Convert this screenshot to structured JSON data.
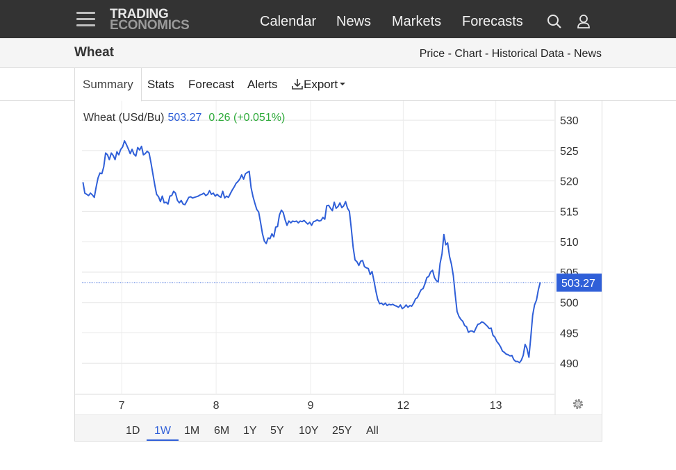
{
  "header": {
    "logo_line1": "TRADING",
    "logo_line2": "ECONOMICS",
    "nav": [
      "Calendar",
      "News",
      "Markets",
      "Forecasts"
    ],
    "icons": [
      "menu-icon",
      "search-icon",
      "user-icon"
    ]
  },
  "subheader": {
    "title": "Wheat",
    "links": [
      "Price",
      "Chart",
      "Historical Data",
      "News"
    ],
    "separator": " - "
  },
  "tabs": {
    "summary": "Summary",
    "stats": "Stats",
    "forecast": "Forecast",
    "alerts": "Alerts",
    "export": "Export"
  },
  "quote": {
    "name": "Wheat (USd/Bu)",
    "price": "503.27",
    "change": "0.26 (+0.051%)",
    "price_color": "#2f5fd8",
    "change_color": "#2eaa3a"
  },
  "ranges": [
    "1D",
    "1W",
    "1M",
    "6M",
    "1Y",
    "5Y",
    "10Y",
    "25Y",
    "All"
  ],
  "active_range": "1W",
  "chart_data": {
    "type": "line",
    "title": "Wheat (USd/Bu)",
    "y_ticks": [
      490,
      495,
      500,
      505,
      510,
      515,
      520,
      525,
      530
    ],
    "ylim": [
      485,
      531.5
    ],
    "x_ticks": [
      {
        "label": "7",
        "t": 0.6
      },
      {
        "label": "8",
        "t": 1.6
      },
      {
        "label": "9",
        "t": 2.6
      },
      {
        "label": "12",
        "t": 3.58
      },
      {
        "label": "13",
        "t": 4.56
      }
    ],
    "xlim": [
      0.18,
      5.18
    ],
    "last_value": 503.27,
    "line_color": "#2f5fd8",
    "series": [
      {
        "points": [
          [
            0.19,
            519.8
          ],
          [
            0.21,
            518
          ],
          [
            0.23,
            517.8
          ],
          [
            0.25,
            517.6
          ],
          [
            0.27,
            518
          ],
          [
            0.29,
            517.7
          ],
          [
            0.31,
            517.3
          ],
          [
            0.33,
            519
          ],
          [
            0.35,
            520.5
          ],
          [
            0.37,
            521.3
          ],
          [
            0.39,
            521.2
          ],
          [
            0.41,
            522.3
          ],
          [
            0.43,
            524.6
          ],
          [
            0.45,
            524.3
          ],
          [
            0.47,
            523.5
          ],
          [
            0.49,
            524.6
          ],
          [
            0.51,
            524.2
          ],
          [
            0.53,
            523.5
          ],
          [
            0.55,
            524.8
          ],
          [
            0.57,
            524.3
          ],
          [
            0.59,
            525.2
          ],
          [
            0.61,
            525.6
          ],
          [
            0.63,
            526.6
          ],
          [
            0.65,
            526
          ],
          [
            0.67,
            525.3
          ],
          [
            0.69,
            524.5
          ],
          [
            0.71,
            525.2
          ],
          [
            0.73,
            524.4
          ],
          [
            0.75,
            524.1
          ],
          [
            0.77,
            525.5
          ],
          [
            0.79,
            525.1
          ],
          [
            0.81,
            525.7
          ],
          [
            0.83,
            524.3
          ],
          [
            0.85,
            524.5
          ],
          [
            0.87,
            524.9
          ],
          [
            0.89,
            524.6
          ],
          [
            0.91,
            523
          ],
          [
            0.93,
            521.2
          ],
          [
            0.95,
            519.4
          ],
          [
            0.97,
            517.8
          ],
          [
            0.99,
            517.4
          ],
          [
            1.01,
            516.6
          ],
          [
            1.03,
            517.5
          ],
          [
            1.05,
            516.4
          ],
          [
            1.07,
            516.5
          ],
          [
            1.09,
            516.2
          ],
          [
            1.11,
            517.5
          ],
          [
            1.13,
            517.6
          ],
          [
            1.15,
            518.3
          ],
          [
            1.17,
            518
          ],
          [
            1.19,
            516.8
          ],
          [
            1.21,
            516.4
          ],
          [
            1.23,
            516.8
          ],
          [
            1.25,
            516.2
          ],
          [
            1.27,
            516.1
          ],
          [
            1.29,
            516.7
          ],
          [
            1.31,
            517.3
          ],
          [
            1.33,
            517.4
          ],
          [
            1.35,
            517.2
          ],
          [
            1.37,
            517.3
          ],
          [
            1.39,
            517.4
          ],
          [
            1.41,
            517.5
          ],
          [
            1.43,
            517.7
          ],
          [
            1.45,
            517.8
          ],
          [
            1.47,
            518
          ],
          [
            1.49,
            517.6
          ],
          [
            1.51,
            517.8
          ],
          [
            1.53,
            518.4
          ],
          [
            1.55,
            517.8
          ],
          [
            1.57,
            518
          ],
          [
            1.59,
            517.5
          ],
          [
            1.61,
            517.8
          ],
          [
            1.63,
            517.5
          ],
          [
            1.65,
            517.3
          ],
          [
            1.67,
            518.3
          ],
          [
            1.69,
            517.2
          ],
          [
            1.71,
            517.5
          ],
          [
            1.73,
            517.3
          ],
          [
            1.75,
            517.9
          ],
          [
            1.77,
            518.5
          ],
          [
            1.79,
            519
          ],
          [
            1.81,
            519.6
          ],
          [
            1.83,
            519.9
          ],
          [
            1.85,
            520.3
          ],
          [
            1.87,
            521
          ],
          [
            1.89,
            520.3
          ],
          [
            1.91,
            521.2
          ],
          [
            1.93,
            521.4
          ],
          [
            1.95,
            521.6
          ],
          [
            1.97,
            518.9
          ],
          [
            1.99,
            517.4
          ],
          [
            2.01,
            516.3
          ],
          [
            2.03,
            515.3
          ],
          [
            2.05,
            514.9
          ],
          [
            2.07,
            513.2
          ],
          [
            2.09,
            511.3
          ],
          [
            2.11,
            510.1
          ],
          [
            2.13,
            509.7
          ],
          [
            2.15,
            510.6
          ],
          [
            2.17,
            510.5
          ],
          [
            2.19,
            511.3
          ],
          [
            2.21,
            510.8
          ],
          [
            2.23,
            512.4
          ],
          [
            2.25,
            512.5
          ],
          [
            2.27,
            514.4
          ],
          [
            2.29,
            515.2
          ],
          [
            2.31,
            514.8
          ],
          [
            2.33,
            513.6
          ],
          [
            2.35,
            512.7
          ],
          [
            2.37,
            513.4
          ],
          [
            2.39,
            513.1
          ],
          [
            2.41,
            513.4
          ],
          [
            2.43,
            513.3
          ],
          [
            2.45,
            513.4
          ],
          [
            2.47,
            513.1
          ],
          [
            2.49,
            513.4
          ],
          [
            2.51,
            513.3
          ],
          [
            2.53,
            513.5
          ],
          [
            2.55,
            513.2
          ],
          [
            2.57,
            512.9
          ],
          [
            2.59,
            513.2
          ],
          [
            2.61,
            512.7
          ],
          [
            2.63,
            513.3
          ],
          [
            2.65,
            513.4
          ],
          [
            2.67,
            513.6
          ],
          [
            2.69,
            513.4
          ],
          [
            2.71,
            513.5
          ],
          [
            2.73,
            514
          ],
          [
            2.75,
            513.7
          ],
          [
            2.77,
            515.9
          ],
          [
            2.79,
            516
          ],
          [
            2.81,
            515.5
          ],
          [
            2.83,
            515.1
          ],
          [
            2.85,
            516.5
          ],
          [
            2.87,
            515.5
          ],
          [
            2.89,
            515.8
          ],
          [
            2.91,
            516.4
          ],
          [
            2.93,
            515.6
          ],
          [
            2.95,
            515.9
          ],
          [
            2.97,
            516.6
          ],
          [
            2.99,
            515.5
          ],
          [
            3.01,
            515
          ],
          [
            3.03,
            512.2
          ],
          [
            3.05,
            509.1
          ],
          [
            3.07,
            507
          ],
          [
            3.09,
            506.7
          ],
          [
            3.11,
            506.1
          ],
          [
            3.13,
            506.8
          ],
          [
            3.15,
            506.9
          ],
          [
            3.17,
            505.9
          ],
          [
            3.19,
            505.7
          ],
          [
            3.21,
            505.6
          ],
          [
            3.23,
            504.6
          ],
          [
            3.25,
            505.1
          ],
          [
            3.27,
            503.6
          ],
          [
            3.29,
            501.9
          ],
          [
            3.31,
            500.5
          ],
          [
            3.33,
            499.8
          ],
          [
            3.35,
            499.9
          ],
          [
            3.37,
            499.6
          ],
          [
            3.39,
            499.9
          ],
          [
            3.41,
            499.5
          ],
          [
            3.43,
            499.7
          ],
          [
            3.45,
            499.6
          ],
          [
            3.47,
            499.7
          ],
          [
            3.49,
            499.5
          ],
          [
            3.51,
            499.4
          ],
          [
            3.53,
            499.2
          ],
          [
            3.55,
            499.6
          ],
          [
            3.57,
            499
          ],
          [
            3.59,
            499.2
          ],
          [
            3.61,
            499.6
          ],
          [
            3.63,
            499.2
          ],
          [
            3.65,
            499.5
          ],
          [
            3.67,
            499.4
          ],
          [
            3.69,
            499.9
          ],
          [
            3.71,
            500.6
          ],
          [
            3.73,
            500.8
          ],
          [
            3.75,
            501.5
          ],
          [
            3.77,
            502.1
          ],
          [
            3.79,
            502.3
          ],
          [
            3.81,
            503.1
          ],
          [
            3.83,
            504.1
          ],
          [
            3.85,
            504.3
          ],
          [
            3.87,
            505
          ],
          [
            3.89,
            505.3
          ],
          [
            3.91,
            504.1
          ],
          [
            3.93,
            503.6
          ],
          [
            3.95,
            503.4
          ],
          [
            3.97,
            506.4
          ],
          [
            3.99,
            508
          ],
          [
            4.01,
            511.2
          ],
          [
            4.03,
            509.5
          ],
          [
            4.05,
            509.8
          ],
          [
            4.07,
            507.6
          ],
          [
            4.09,
            506.3
          ],
          [
            4.11,
            504.4
          ],
          [
            4.13,
            501.3
          ],
          [
            4.15,
            498.5
          ],
          [
            4.17,
            497.7
          ],
          [
            4.19,
            497.2
          ],
          [
            4.21,
            496.9
          ],
          [
            4.23,
            496.2
          ],
          [
            4.25,
            496
          ],
          [
            4.27,
            495.1
          ],
          [
            4.29,
            495.3
          ],
          [
            4.31,
            495.3
          ],
          [
            4.33,
            495.1
          ],
          [
            4.35,
            495.8
          ],
          [
            4.37,
            496.4
          ],
          [
            4.39,
            496.5
          ],
          [
            4.41,
            496.8
          ],
          [
            4.43,
            496.7
          ],
          [
            4.45,
            496.4
          ],
          [
            4.47,
            496.1
          ],
          [
            4.49,
            495.7
          ],
          [
            4.51,
            495.8
          ],
          [
            4.53,
            494.6
          ],
          [
            4.55,
            494.3
          ],
          [
            4.57,
            493.6
          ],
          [
            4.59,
            493.2
          ],
          [
            4.61,
            492.7
          ],
          [
            4.63,
            492
          ],
          [
            4.65,
            491.8
          ],
          [
            4.67,
            491.5
          ],
          [
            4.69,
            491.4
          ],
          [
            4.71,
            491.2
          ],
          [
            4.73,
            491.3
          ],
          [
            4.75,
            490.6
          ],
          [
            4.77,
            490.3
          ],
          [
            4.79,
            490.3
          ],
          [
            4.81,
            490.1
          ],
          [
            4.83,
            490.5
          ],
          [
            4.85,
            491.3
          ],
          [
            4.87,
            493.1
          ],
          [
            4.89,
            492.4
          ],
          [
            4.91,
            491
          ],
          [
            4.93,
            494.3
          ],
          [
            4.95,
            497.9
          ],
          [
            4.97,
            499.6
          ],
          [
            4.99,
            500.4
          ],
          [
            5.01,
            502.1
          ],
          [
            5.03,
            503.3
          ]
        ]
      }
    ]
  }
}
